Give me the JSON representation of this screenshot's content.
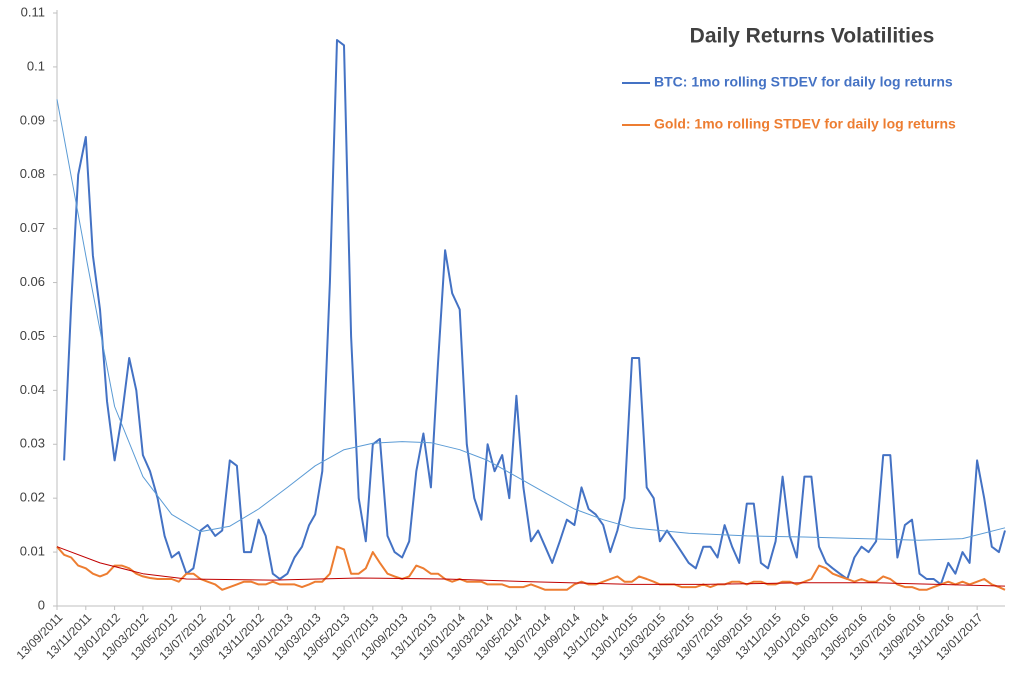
{
  "chart_data": {
    "type": "line",
    "title": "Daily Returns Volatilities",
    "x": [
      "2011-09-13",
      "2011-09-28",
      "2011-10-13",
      "2011-10-28",
      "2011-11-13",
      "2011-11-28",
      "2011-12-13",
      "2011-12-28",
      "2012-01-13",
      "2012-01-28",
      "2012-02-13",
      "2012-02-28",
      "2012-03-13",
      "2012-03-28",
      "2012-04-13",
      "2012-04-28",
      "2012-05-13",
      "2012-05-28",
      "2012-06-13",
      "2012-06-28",
      "2012-07-13",
      "2012-07-28",
      "2012-08-13",
      "2012-08-28",
      "2012-09-13",
      "2012-09-28",
      "2012-10-13",
      "2012-10-28",
      "2012-11-13",
      "2012-11-28",
      "2012-12-13",
      "2012-12-28",
      "2013-01-13",
      "2013-01-28",
      "2013-02-13",
      "2013-02-28",
      "2013-03-13",
      "2013-03-28",
      "2013-04-13",
      "2013-04-28",
      "2013-05-13",
      "2013-05-28",
      "2013-06-13",
      "2013-06-28",
      "2013-07-13",
      "2013-07-28",
      "2013-08-13",
      "2013-08-28",
      "2013-09-13",
      "2013-09-28",
      "2013-10-13",
      "2013-10-28",
      "2013-11-13",
      "2013-11-28",
      "2013-12-13",
      "2013-12-28",
      "2014-01-13",
      "2014-01-28",
      "2014-02-13",
      "2014-02-28",
      "2014-03-13",
      "2014-03-28",
      "2014-04-13",
      "2014-04-28",
      "2014-05-13",
      "2014-05-28",
      "2014-06-13",
      "2014-06-28",
      "2014-07-13",
      "2014-07-28",
      "2014-08-13",
      "2014-08-28",
      "2014-09-13",
      "2014-09-28",
      "2014-10-13",
      "2014-10-28",
      "2014-11-13",
      "2014-11-28",
      "2014-12-13",
      "2014-12-28",
      "2015-01-13",
      "2015-01-28",
      "2015-02-13",
      "2015-02-28",
      "2015-03-13",
      "2015-03-28",
      "2015-04-13",
      "2015-04-28",
      "2015-05-13",
      "2015-05-28",
      "2015-06-13",
      "2015-06-28",
      "2015-07-13",
      "2015-07-28",
      "2015-08-13",
      "2015-08-28",
      "2015-09-13",
      "2015-09-28",
      "2015-10-13",
      "2015-10-28",
      "2015-11-13",
      "2015-11-28",
      "2015-12-13",
      "2015-12-28",
      "2016-01-13",
      "2016-01-28",
      "2016-02-13",
      "2016-02-28",
      "2016-03-13",
      "2016-03-28",
      "2016-04-13",
      "2016-04-28",
      "2016-05-13",
      "2016-05-28",
      "2016-06-13",
      "2016-06-28",
      "2016-07-13",
      "2016-07-28",
      "2016-08-13",
      "2016-08-28",
      "2016-09-13",
      "2016-09-28",
      "2016-10-13",
      "2016-10-28",
      "2016-11-13",
      "2016-11-28",
      "2016-12-13",
      "2016-12-28",
      "2017-01-13",
      "2017-01-28",
      "2017-02-13",
      "2017-02-28",
      "2017-03-13"
    ],
    "series": [
      {
        "name": "BTC: 1mo rolling STDEV for daily log returns",
        "color": "#4472c4",
        "values": [
          null,
          0.027,
          0.056,
          0.08,
          0.087,
          0.065,
          0.055,
          0.038,
          0.027,
          0.035,
          0.046,
          0.04,
          0.028,
          0.025,
          0.02,
          0.013,
          0.009,
          0.01,
          0.006,
          0.007,
          0.014,
          0.015,
          0.013,
          0.014,
          0.027,
          0.026,
          0.01,
          0.01,
          0.016,
          0.013,
          0.006,
          0.005,
          0.006,
          0.009,
          0.011,
          0.015,
          0.017,
          0.025,
          0.06,
          0.105,
          0.104,
          0.05,
          0.02,
          0.012,
          0.03,
          0.031,
          0.013,
          0.01,
          0.009,
          0.012,
          0.025,
          0.032,
          0.022,
          0.045,
          0.066,
          0.058,
          0.055,
          0.03,
          0.02,
          0.016,
          0.03,
          0.025,
          0.028,
          0.02,
          0.039,
          0.022,
          0.012,
          0.014,
          0.011,
          0.008,
          0.012,
          0.016,
          0.015,
          0.022,
          0.018,
          0.017,
          0.015,
          0.01,
          0.014,
          0.02,
          0.046,
          0.046,
          0.022,
          0.02,
          0.012,
          0.014,
          0.012,
          0.01,
          0.008,
          0.007,
          0.011,
          0.011,
          0.009,
          0.015,
          0.011,
          0.008,
          0.019,
          0.019,
          0.008,
          0.007,
          0.012,
          0.024,
          0.013,
          0.009,
          0.024,
          0.024,
          0.011,
          0.008,
          0.007,
          0.006,
          0.005,
          0.009,
          0.011,
          0.01,
          0.012,
          0.028,
          0.028,
          0.009,
          0.015,
          0.016,
          0.006,
          0.005,
          0.005,
          0.004,
          0.008,
          0.006,
          0.01,
          0.008,
          0.027,
          0.02,
          0.011,
          0.01,
          0.014
        ]
      },
      {
        "name": "Gold: 1mo rolling STDEV for daily log returns",
        "color": "#ed7d31",
        "values": [
          0.011,
          0.0095,
          0.009,
          0.0075,
          0.007,
          0.006,
          0.0055,
          0.006,
          0.0075,
          0.0075,
          0.007,
          0.006,
          0.0055,
          0.0052,
          0.005,
          0.005,
          0.005,
          0.0045,
          0.006,
          0.006,
          0.005,
          0.0045,
          0.004,
          0.003,
          0.0035,
          0.004,
          0.0045,
          0.0045,
          0.004,
          0.004,
          0.0045,
          0.004,
          0.004,
          0.004,
          0.0035,
          0.004,
          0.0045,
          0.0045,
          0.006,
          0.011,
          0.0105,
          0.006,
          0.006,
          0.007,
          0.01,
          0.008,
          0.006,
          0.0055,
          0.005,
          0.0055,
          0.0075,
          0.007,
          0.006,
          0.006,
          0.005,
          0.0045,
          0.005,
          0.0045,
          0.0045,
          0.0045,
          0.004,
          0.004,
          0.004,
          0.0035,
          0.0035,
          0.0035,
          0.004,
          0.0035,
          0.003,
          0.003,
          0.003,
          0.003,
          0.004,
          0.0045,
          0.004,
          0.004,
          0.0045,
          0.005,
          0.0055,
          0.0045,
          0.0045,
          0.0055,
          0.005,
          0.0045,
          0.004,
          0.004,
          0.004,
          0.0035,
          0.0035,
          0.0035,
          0.004,
          0.0035,
          0.004,
          0.004,
          0.0045,
          0.0045,
          0.004,
          0.0045,
          0.0045,
          0.004,
          0.004,
          0.0045,
          0.0045,
          0.004,
          0.0045,
          0.005,
          0.0075,
          0.007,
          0.006,
          0.0055,
          0.005,
          0.0045,
          0.005,
          0.0045,
          0.0045,
          0.0055,
          0.005,
          0.004,
          0.0035,
          0.0035,
          0.003,
          0.003,
          0.0035,
          0.004,
          0.0045,
          0.004,
          0.0045,
          0.004,
          0.0045,
          0.005,
          0.004,
          0.0035,
          0.003
        ]
      },
      {
        "color": "#5b9bd5",
        "x": [
          "2011-09-13",
          "2011-11-13",
          "2012-01-13",
          "2012-03-13",
          "2012-05-13",
          "2012-07-13",
          "2012-09-13",
          "2012-11-13",
          "2013-01-13",
          "2013-03-13",
          "2013-05-13",
          "2013-07-13",
          "2013-09-13",
          "2013-11-13",
          "2014-01-13",
          "2014-03-13",
          "2014-05-13",
          "2014-07-13",
          "2014-09-13",
          "2014-11-13",
          "2015-01-13",
          "2015-05-13",
          "2015-09-13",
          "2016-01-13",
          "2016-05-13",
          "2016-09-13",
          "2016-12-13",
          "2017-03-13"
        ],
        "values": [
          0.094,
          0.065,
          0.037,
          0.024,
          0.017,
          0.0138,
          0.0148,
          0.018,
          0.022,
          0.026,
          0.029,
          0.0302,
          0.0305,
          0.0303,
          0.029,
          0.027,
          0.024,
          0.021,
          0.018,
          0.016,
          0.0145,
          0.0135,
          0.013,
          0.0128,
          0.0125,
          0.0122,
          0.0125,
          0.0145
        ]
      },
      {
        "color": "#c00000",
        "x": [
          "2011-09-13",
          "2011-12-13",
          "2012-03-13",
          "2012-06-13",
          "2012-12-13",
          "2013-06-13",
          "2013-12-13",
          "2014-06-13",
          "2015-01-13",
          "2015-06-13",
          "2016-01-13",
          "2016-06-13",
          "2017-03-13"
        ],
        "values": [
          0.011,
          0.008,
          0.006,
          0.005,
          0.0048,
          0.0052,
          0.005,
          0.0045,
          0.004,
          0.004,
          0.0043,
          0.0043,
          0.0037
        ]
      }
    ],
    "xlim": [
      "2011-09-13",
      "2017-03-13"
    ],
    "xticks": [
      {
        "value": "2011-09-13",
        "label": "13/09/2011"
      },
      {
        "value": "2011-11-13",
        "label": "13/11/2011"
      },
      {
        "value": "2012-01-13",
        "label": "13/01/2012"
      },
      {
        "value": "2012-03-13",
        "label": "13/03/2012"
      },
      {
        "value": "2012-05-13",
        "label": "13/05/2012"
      },
      {
        "value": "2012-07-13",
        "label": "13/07/2012"
      },
      {
        "value": "2012-09-13",
        "label": "13/09/2012"
      },
      {
        "value": "2012-11-13",
        "label": "13/11/2012"
      },
      {
        "value": "2013-01-13",
        "label": "13/01/2013"
      },
      {
        "value": "2013-03-13",
        "label": "13/03/2013"
      },
      {
        "value": "2013-05-13",
        "label": "13/05/2013"
      },
      {
        "value": "2013-07-13",
        "label": "13/07/2013"
      },
      {
        "value": "2013-09-13",
        "label": "13/09/2013"
      },
      {
        "value": "2013-11-13",
        "label": "13/11/2013"
      },
      {
        "value": "2014-01-13",
        "label": "13/01/2014"
      },
      {
        "value": "2014-03-13",
        "label": "13/03/2014"
      },
      {
        "value": "2014-05-13",
        "label": "13/05/2014"
      },
      {
        "value": "2014-07-13",
        "label": "13/07/2014"
      },
      {
        "value": "2014-09-13",
        "label": "13/09/2014"
      },
      {
        "value": "2014-11-13",
        "label": "13/11/2014"
      },
      {
        "value": "2015-01-13",
        "label": "13/01/2015"
      },
      {
        "value": "2015-03-13",
        "label": "13/03/2015"
      },
      {
        "value": "2015-05-13",
        "label": "13/05/2015"
      },
      {
        "value": "2015-07-13",
        "label": "13/07/2015"
      },
      {
        "value": "2015-09-13",
        "label": "13/09/2015"
      },
      {
        "value": "2015-11-13",
        "label": "13/11/2015"
      },
      {
        "value": "2016-01-13",
        "label": "13/01/2016"
      },
      {
        "value": "2016-03-13",
        "label": "13/03/2016"
      },
      {
        "value": "2016-05-13",
        "label": "13/05/2016"
      },
      {
        "value": "2016-07-13",
        "label": "13/07/2016"
      },
      {
        "value": "2016-09-13",
        "label": "13/09/2016"
      },
      {
        "value": "2016-11-13",
        "label": "13/11/2016"
      },
      {
        "value": "2017-01-13",
        "label": "13/01/2017"
      }
    ],
    "ylim": [
      0,
      0.11
    ],
    "yticks": [
      0,
      0.01,
      0.02,
      0.03,
      0.04,
      0.05,
      0.06,
      0.07,
      0.08,
      0.09,
      0.1,
      0.11
    ],
    "grid": false,
    "legend": "top-right"
  }
}
